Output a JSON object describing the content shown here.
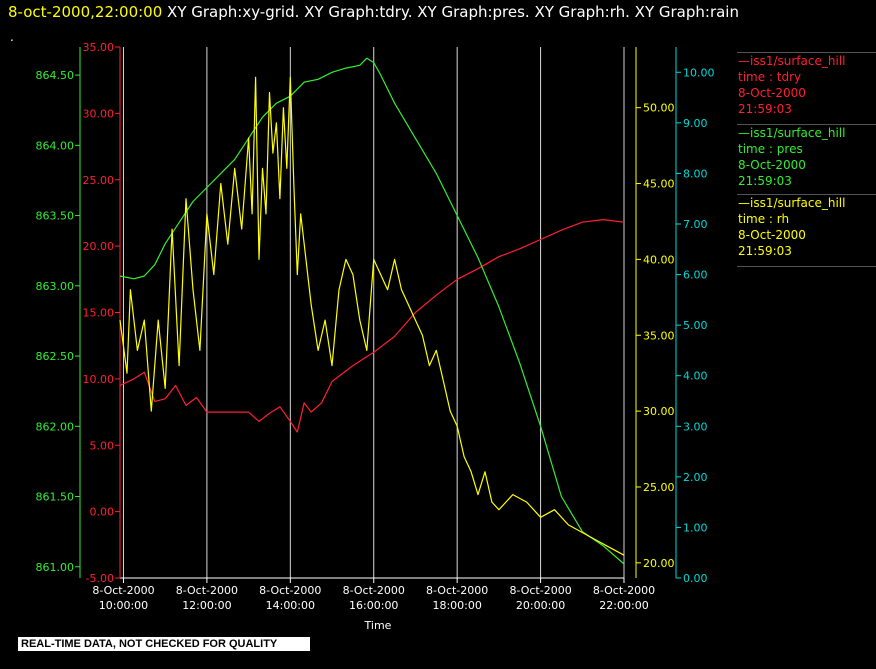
{
  "header": {
    "date": "8-oct-2000,22:00:00",
    "graphs": "XY Graph:xy-grid.  XY Graph:tdry.  XY Graph:pres.  XY Graph:rh.  XY Graph:rain"
  },
  "mark": ".",
  "footer": "REAL-TIME DATA, NOT CHECKED FOR QUALITY",
  "colors": {
    "tdry": "#ff2030",
    "pres": "#33ee33",
    "rh": "#ffff00",
    "rain": "#00d8d8",
    "grid": "#ffffff"
  },
  "legend": [
    {
      "station": "—iss1/surface_hill",
      "var": "time : tdry",
      "date": "8-Oct-2000",
      "time": "21:59:03",
      "color": "#ff2030"
    },
    {
      "station": "—iss1/surface_hill",
      "var": "time : pres",
      "date": "8-Oct-2000",
      "time": "21:59:03",
      "color": "#33ee33"
    },
    {
      "station": "—iss1/surface_hill",
      "var": "time : rh",
      "date": "8-Oct-2000",
      "time": "21:59:03",
      "color": "#ffff00"
    }
  ],
  "chart_data": {
    "type": "line",
    "xlabel": "Time",
    "xlim": [
      "8-Oct-2000 09:55:00",
      "8-Oct-2000 22:00:00"
    ],
    "x_ticks": [
      {
        "date": "8-Oct-2000",
        "time": "10:00:00"
      },
      {
        "date": "8-Oct-2000",
        "time": "12:00:00"
      },
      {
        "date": "8-Oct-2000",
        "time": "14:00:00"
      },
      {
        "date": "8-Oct-2000",
        "time": "16:00:00"
      },
      {
        "date": "8-Oct-2000",
        "time": "18:00:00"
      },
      {
        "date": "8-Oct-2000",
        "time": "20:00:00"
      },
      {
        "date": "8-Oct-2000",
        "time": "22:00:00"
      }
    ],
    "grid": "vertical",
    "axes": {
      "pres": {
        "ylim": [
          860.92,
          864.7
        ],
        "ticks": [
          "861.00",
          "861.50",
          "862.00",
          "862.50",
          "863.00",
          "863.50",
          "864.00",
          "864.50"
        ]
      },
      "tdry": {
        "ylim": [
          -5,
          35
        ],
        "ticks": [
          "-5.00",
          "0.00",
          "5.00",
          "10.00",
          "15.00",
          "20.00",
          "25.00",
          "30.00",
          "35.00"
        ]
      },
      "rh": {
        "ylim": [
          19,
          54
        ],
        "ticks": [
          "20.00",
          "25.00",
          "30.00",
          "35.00",
          "40.00",
          "45.00",
          "50.00"
        ]
      },
      "rain": {
        "ylim": [
          0,
          10.5
        ],
        "ticks": [
          "0.00",
          "1.00",
          "2.00",
          "3.00",
          "4.00",
          "5.00",
          "6.00",
          "7.00",
          "8.00",
          "9.00",
          "10.00"
        ]
      }
    },
    "series": [
      {
        "key": "tdry",
        "axis": "tdry",
        "x": [
          "09:55",
          "10:15",
          "10:30",
          "10:45",
          "11:00",
          "11:15",
          "11:30",
          "11:45",
          "12:00",
          "12:30",
          "13:00",
          "13:15",
          "13:30",
          "13:45",
          "14:00",
          "14:10",
          "14:20",
          "14:30",
          "14:45",
          "15:00",
          "15:30",
          "16:00",
          "16:30",
          "17:00",
          "17:30",
          "18:00",
          "18:30",
          "19:00",
          "19:30",
          "20:00",
          "20:30",
          "21:00",
          "21:30",
          "22:00"
        ],
        "values": [
          9.5,
          10.0,
          10.5,
          8.3,
          8.5,
          9.5,
          8.0,
          8.6,
          7.5,
          7.5,
          7.5,
          6.8,
          7.4,
          7.9,
          6.8,
          6.0,
          8.2,
          7.5,
          8.2,
          9.8,
          11.0,
          12.0,
          13.2,
          15.0,
          16.3,
          17.5,
          18.3,
          19.2,
          19.8,
          20.5,
          21.2,
          21.8,
          22.0,
          21.8
        ]
      },
      {
        "key": "pres",
        "axis": "pres",
        "x": [
          "09:55",
          "10:15",
          "10:30",
          "10:45",
          "11:00",
          "11:20",
          "11:40",
          "12:00",
          "12:20",
          "12:40",
          "13:00",
          "13:20",
          "13:40",
          "14:00",
          "14:20",
          "14:40",
          "15:00",
          "15:20",
          "15:40",
          "15:50",
          "16:00",
          "16:10",
          "16:30",
          "17:00",
          "17:30",
          "18:00",
          "18:30",
          "19:00",
          "19:30",
          "20:00",
          "20:30",
          "21:00",
          "21:30",
          "22:00"
        ],
        "values": [
          863.07,
          863.05,
          863.07,
          863.15,
          863.3,
          863.45,
          863.6,
          863.7,
          863.8,
          863.9,
          864.05,
          864.2,
          864.3,
          864.35,
          864.45,
          864.47,
          864.52,
          864.55,
          864.57,
          864.62,
          864.59,
          864.5,
          864.3,
          864.05,
          863.8,
          863.5,
          863.2,
          862.85,
          862.45,
          862.0,
          861.5,
          861.25,
          861.15,
          861.02
        ]
      },
      {
        "key": "rh",
        "axis": "rh",
        "x": [
          "09:55",
          "10:05",
          "10:10",
          "10:20",
          "10:30",
          "10:40",
          "10:50",
          "11:00",
          "11:10",
          "11:20",
          "11:30",
          "11:40",
          "11:50",
          "12:00",
          "12:10",
          "12:20",
          "12:30",
          "12:40",
          "12:50",
          "13:00",
          "13:05",
          "13:10",
          "13:15",
          "13:20",
          "13:25",
          "13:30",
          "13:35",
          "13:40",
          "13:45",
          "13:50",
          "13:55",
          "14:00",
          "14:05",
          "14:10",
          "14:15",
          "14:20",
          "14:30",
          "14:40",
          "14:50",
          "15:00",
          "15:10",
          "15:20",
          "15:30",
          "15:40",
          "15:50",
          "16:00",
          "16:10",
          "16:20",
          "16:30",
          "16:40",
          "16:50",
          "17:00",
          "17:10",
          "17:20",
          "17:30",
          "17:40",
          "17:50",
          "18:00",
          "18:10",
          "18:20",
          "18:30",
          "18:40",
          "18:50",
          "19:00",
          "19:20",
          "19:40",
          "20:00",
          "20:20",
          "20:40",
          "21:00",
          "21:20",
          "21:40",
          "22:00"
        ],
        "values": [
          36,
          32.5,
          38,
          34,
          36,
          30,
          36,
          31.5,
          42,
          33,
          44,
          38,
          34,
          43,
          39,
          45,
          41,
          46,
          42,
          48,
          43,
          52,
          40,
          46,
          43,
          51,
          47,
          49,
          44,
          50,
          46,
          52,
          45,
          39,
          43,
          41,
          37,
          34,
          36,
          33,
          38,
          40,
          39,
          36,
          34,
          40,
          39,
          38,
          40,
          38,
          37,
          36,
          35,
          33,
          34,
          32,
          30,
          29,
          27,
          26,
          24.5,
          26,
          24,
          23.5,
          24.5,
          24,
          23,
          23.5,
          22.5,
          22,
          21.5,
          21,
          20.5
        ]
      }
    ]
  }
}
